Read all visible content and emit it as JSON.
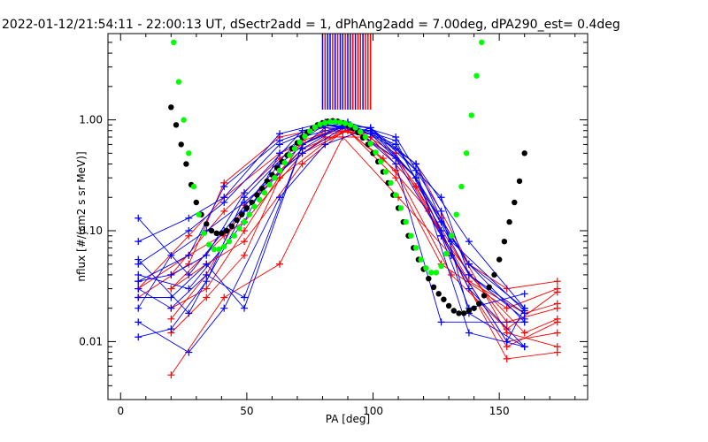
{
  "chart_data": {
    "type": "line",
    "title": "2022-01-12/21:54:11 - 22:00:13 UT, dSectr2add = 1, dPhAng2add = 7.00deg, dPA290_est=   0.4deg",
    "xlabel": "PA [deg]",
    "ylabel": "nflux [#/(cm2 s sr MeV)]",
    "xlim": [
      -5,
      185
    ],
    "ylim": [
      0.003,
      6
    ],
    "yscale": "log",
    "xticks": [
      0,
      50,
      100,
      150
    ],
    "yticks": [
      0.01,
      0.1,
      1.0
    ],
    "ytick_labels": [
      "0.01",
      "0.10",
      "1.00"
    ],
    "grid": false,
    "colors": {
      "red": "#ff0000",
      "blue": "#0000ff",
      "black": "#000000",
      "green": "#00ff00",
      "axes": "#000000"
    },
    "top_marker_x": [
      80,
      81,
      82,
      83,
      84,
      85,
      86,
      87,
      88,
      89,
      90,
      91,
      92,
      93,
      94,
      95,
      96,
      97,
      98,
      99
    ],
    "top_marker_colors": [
      "blue",
      "red",
      "blue",
      "blue",
      "red",
      "blue",
      "red",
      "blue",
      "blue",
      "red",
      "blue",
      "blue",
      "red",
      "blue",
      "red",
      "red",
      "blue",
      "red",
      "red",
      "red"
    ],
    "series": [
      {
        "color": "red",
        "style": "lines+plus",
        "curves": [
          {
            "x": [
              20,
              41,
              63,
              88,
              110,
              131,
              153,
              173
            ],
            "y": [
              0.005,
              0.025,
              0.05,
              0.7,
              0.2,
              0.06,
              0.007,
              0.008
            ]
          },
          {
            "x": [
              20,
              34,
              49,
              72,
              90,
              109,
              127,
              153,
              173
            ],
            "y": [
              0.03,
              0.05,
              0.08,
              0.4,
              0.85,
              0.45,
              0.13,
              0.012,
              0.009
            ]
          },
          {
            "x": [
              20,
              34,
              49,
              72,
              90,
              109,
              127,
              153,
              173
            ],
            "y": [
              0.016,
              0.04,
              0.17,
              0.55,
              0.8,
              0.3,
              0.05,
              0.02,
              0.03
            ]
          },
          {
            "x": [
              7,
              27,
              41,
              63,
              81,
              99,
              117,
              138,
              153,
              173
            ],
            "y": [
              0.025,
              0.05,
              0.27,
              0.7,
              0.85,
              0.7,
              0.25,
              0.03,
              0.009,
              0.015
            ]
          },
          {
            "x": [
              7,
              27,
              41,
              63,
              81,
              99,
              117,
              138,
              153,
              173
            ],
            "y": [
              0.03,
              0.09,
              0.2,
              0.5,
              0.75,
              0.8,
              0.4,
              0.05,
              0.03,
              0.035
            ]
          },
          {
            "x": [
              20,
              34,
              49,
              63,
              90,
              109,
              127,
              153,
              173
            ],
            "y": [
              0.012,
              0.025,
              0.06,
              0.3,
              0.9,
              0.5,
              0.09,
              0.015,
              0.02
            ]
          },
          {
            "x": [
              20,
              41,
              63,
              81,
              99,
              117,
              131,
              153,
              173
            ],
            "y": [
              0.04,
              0.15,
              0.45,
              0.8,
              0.75,
              0.3,
              0.06,
              0.01,
              0.012
            ]
          },
          {
            "x": [
              7,
              27,
              49,
              72,
              90,
              109,
              131,
              153,
              173
            ],
            "y": [
              0.03,
              0.06,
              0.12,
              0.5,
              0.8,
              0.35,
              0.04,
              0.013,
              0.028
            ]
          },
          {
            "x": [
              20,
              34,
              49,
              72,
              88,
              104,
              122,
              138,
              160,
              173
            ],
            "y": [
              0.02,
              0.03,
              0.1,
              0.65,
              0.85,
              0.45,
              0.15,
              0.035,
              0.018,
              0.022
            ]
          },
          {
            "x": [
              20,
              41,
              63,
              81,
              99,
              117,
              138,
              160,
              173
            ],
            "y": [
              0.03,
              0.09,
              0.35,
              0.7,
              0.7,
              0.25,
              0.04,
              0.012,
              0.016
            ]
          }
        ]
      },
      {
        "color": "blue",
        "style": "lines+plus",
        "curves": [
          {
            "x": [
              7,
              27,
              41,
              63,
              81,
              99,
              117,
              138,
              160
            ],
            "y": [
              0.08,
              0.13,
              0.2,
              0.75,
              0.95,
              0.85,
              0.4,
              0.08,
              0.02
            ]
          },
          {
            "x": [
              7,
              27,
              41,
              63,
              81,
              99,
              117,
              138,
              160
            ],
            "y": [
              0.05,
              0.1,
              0.18,
              0.6,
              0.9,
              0.75,
              0.3,
              0.05,
              0.015
            ]
          },
          {
            "x": [
              7,
              20,
              34,
              49,
              72,
              90,
              109,
              127,
              138,
              160
            ],
            "y": [
              0.035,
              0.04,
              0.06,
              0.22,
              0.8,
              0.95,
              0.55,
              0.2,
              0.04,
              0.018
            ]
          },
          {
            "x": [
              7,
              20,
              34,
              49,
              72,
              90,
              109,
              127,
              138,
              160
            ],
            "y": [
              0.02,
              0.06,
              0.1,
              0.18,
              0.5,
              0.9,
              0.65,
              0.1,
              0.03,
              0.009
            ]
          },
          {
            "x": [
              7,
              27,
              41,
              63,
              81,
              99,
              117,
              138,
              160
            ],
            "y": [
              0.015,
              0.008,
              0.02,
              0.2,
              0.6,
              0.85,
              0.35,
              0.012,
              0.009
            ]
          },
          {
            "x": [
              7,
              20,
              34,
              49,
              72,
              90,
              109,
              127,
              138,
              160
            ],
            "y": [
              0.025,
              0.025,
              0.05,
              0.02,
              0.6,
              0.9,
              0.6,
              0.12,
              0.05,
              0.02
            ]
          },
          {
            "x": [
              7,
              27,
              41,
              63,
              81,
              99,
              117,
              131,
              153,
              160
            ],
            "y": [
              0.13,
              0.04,
              0.1,
              0.4,
              0.85,
              0.8,
              0.3,
              0.06,
              0.01,
              0.02
            ]
          },
          {
            "x": [
              7,
              20,
              34,
              49,
              72,
              90,
              109,
              127,
              138,
              160
            ],
            "y": [
              0.011,
              0.013,
              0.035,
              0.2,
              0.7,
              0.9,
              0.45,
              0.09,
              0.02,
              0.027
            ]
          },
          {
            "x": [
              7,
              27,
              49,
              63,
              81,
              99,
              117,
              131,
              160
            ],
            "y": [
              0.04,
              0.03,
              0.12,
              0.5,
              0.9,
              0.8,
              0.4,
              0.08,
              0.019
            ]
          },
          {
            "x": [
              7,
              20,
              34,
              49,
              72,
              90,
              109,
              127,
              160
            ],
            "y": [
              0.03,
              0.02,
              0.04,
              0.025,
              0.6,
              0.95,
              0.4,
              0.015,
              0.015
            ]
          },
          {
            "x": [
              7,
              27,
              41,
              63,
              81,
              99,
              117,
              138,
              160
            ],
            "y": [
              0.035,
              0.06,
              0.25,
              0.65,
              0.9,
              0.85,
              0.3,
              0.04,
              0.016
            ]
          },
          {
            "x": [
              7,
              27,
              49,
              72,
              90,
              109,
              127,
              138,
              160
            ],
            "y": [
              0.055,
              0.018,
              0.15,
              0.55,
              0.95,
              0.7,
              0.15,
              0.018,
              0.009
            ]
          }
        ]
      },
      {
        "color": "black",
        "style": "dots",
        "curves": [
          {
            "x": [
              20,
              22,
              24,
              26,
              28,
              30,
              32,
              34,
              36,
              38,
              40,
              42,
              44,
              46,
              48,
              50,
              52,
              54,
              56,
              58,
              60,
              62,
              64,
              66,
              68,
              70,
              72,
              74,
              76,
              78,
              80,
              82,
              84,
              86,
              88,
              90,
              92,
              94,
              96,
              98,
              100,
              102,
              104,
              106,
              108,
              110,
              112,
              114,
              116,
              118,
              120,
              122,
              124,
              126,
              128,
              130,
              132,
              134,
              136,
              138,
              140,
              142,
              144,
              146,
              148,
              150,
              152,
              154,
              156,
              158,
              160
            ],
            "y": [
              1.3,
              0.9,
              0.6,
              0.4,
              0.26,
              0.18,
              0.14,
              0.115,
              0.1,
              0.095,
              0.095,
              0.1,
              0.11,
              0.125,
              0.14,
              0.16,
              0.18,
              0.21,
              0.24,
              0.28,
              0.32,
              0.37,
              0.42,
              0.48,
              0.55,
              0.62,
              0.7,
              0.77,
              0.84,
              0.9,
              0.94,
              0.97,
              0.98,
              0.97,
              0.94,
              0.9,
              0.84,
              0.77,
              0.69,
              0.6,
              0.5,
              0.42,
              0.34,
              0.27,
              0.21,
              0.16,
              0.12,
              0.09,
              0.07,
              0.055,
              0.045,
              0.037,
              0.031,
              0.027,
              0.024,
              0.021,
              0.019,
              0.018,
              0.018,
              0.019,
              0.02,
              0.022,
              0.026,
              0.031,
              0.04,
              0.055,
              0.08,
              0.12,
              0.18,
              0.28,
              0.5
            ]
          }
        ]
      },
      {
        "color": "green",
        "style": "dots",
        "curves": [
          {
            "x": [
              21,
              23,
              25,
              27,
              29,
              31,
              33,
              35,
              37,
              39,
              41,
              43,
              45,
              47,
              49,
              51,
              53,
              55,
              57,
              59,
              61,
              63,
              65,
              67,
              69,
              71,
              73,
              75,
              77,
              79,
              81,
              83,
              85,
              87,
              89,
              91,
              93,
              95,
              97,
              99,
              101,
              103,
              105,
              107,
              109,
              111,
              113,
              115,
              117,
              119,
              121,
              123,
              125,
              127,
              129,
              131,
              133,
              135,
              137,
              139,
              141,
              143
            ],
            "y": [
              5,
              2.2,
              1.0,
              0.5,
              0.25,
              0.14,
              0.095,
              0.075,
              0.068,
              0.068,
              0.072,
              0.08,
              0.09,
              0.105,
              0.12,
              0.14,
              0.165,
              0.19,
              0.22,
              0.26,
              0.3,
              0.35,
              0.41,
              0.48,
              0.55,
              0.63,
              0.71,
              0.79,
              0.86,
              0.91,
              0.94,
              0.96,
              0.96,
              0.95,
              0.93,
              0.9,
              0.85,
              0.78,
              0.7,
              0.61,
              0.51,
              0.42,
              0.34,
              0.27,
              0.21,
              0.16,
              0.12,
              0.09,
              0.07,
              0.055,
              0.046,
              0.042,
              0.042,
              0.048,
              0.062,
              0.09,
              0.14,
              0.25,
              0.5,
              1.1,
              2.5,
              5
            ]
          }
        ]
      }
    ]
  }
}
